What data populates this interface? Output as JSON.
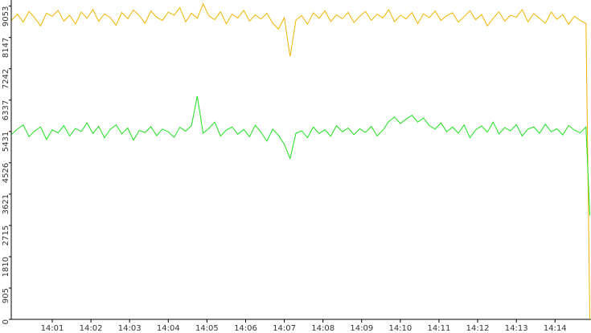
{
  "chart_data": {
    "type": "line",
    "x": [
      839.95,
      840.1,
      840.25,
      840.4,
      840.55,
      840.7,
      840.85,
      841.0,
      841.15,
      841.3,
      841.45,
      841.6,
      841.75,
      841.9,
      842.05,
      842.2,
      842.35,
      842.5,
      842.65,
      842.8,
      842.95,
      843.1,
      843.25,
      843.4,
      843.55,
      843.7,
      843.85,
      844.0,
      844.15,
      844.3,
      844.45,
      844.6,
      844.75,
      844.9,
      845.05,
      845.2,
      845.35,
      845.5,
      845.65,
      845.8,
      845.95,
      846.1,
      846.25,
      846.4,
      846.55,
      846.7,
      846.85,
      847.0,
      847.15,
      847.3,
      847.45,
      847.6,
      847.75,
      847.9,
      848.05,
      848.2,
      848.35,
      848.5,
      848.65,
      848.8,
      848.95,
      849.1,
      849.25,
      849.4,
      849.55,
      849.7,
      849.85,
      850.0,
      850.15,
      850.3,
      850.45,
      850.6,
      850.75,
      850.9,
      851.05,
      851.2,
      851.35,
      851.5,
      851.65,
      851.8,
      851.95,
      852.1,
      852.25,
      852.4,
      852.55,
      852.7,
      852.85,
      853.0,
      853.15,
      853.3,
      853.45,
      853.6,
      853.75,
      853.9,
      854.05,
      854.2,
      854.35,
      854.5,
      854.65,
      854.8,
      854.9
    ],
    "series": [
      {
        "color": "#f0b400",
        "values": [
          8650,
          8820,
          8590,
          8900,
          8710,
          8480,
          8850,
          8760,
          8930,
          8620,
          8790,
          8540,
          8880,
          8700,
          8960,
          8610,
          8830,
          8720,
          8500,
          8870,
          8690,
          8940,
          8780,
          8560,
          8910,
          8730,
          8640,
          8880,
          8790,
          9010,
          8600,
          8850,
          8700,
          9120,
          8770,
          8660,
          8890,
          8540,
          8820,
          8710,
          8930,
          8620,
          8800,
          8680,
          8850,
          8560,
          8390,
          8720,
          7600,
          8650,
          8780,
          8530,
          8860,
          8700,
          8920,
          8610,
          8800,
          8690,
          8870,
          8580,
          8760,
          8900,
          8640,
          8820,
          8710,
          8950,
          8600,
          8790,
          8680,
          8870,
          8550,
          8830,
          8720,
          8910,
          8640,
          8780,
          8860,
          8590,
          8750,
          8920,
          8660,
          8810,
          8480,
          8700,
          8890,
          8620,
          8790,
          8730,
          8950,
          8600,
          8840,
          8700,
          8560,
          8880,
          8670,
          8810,
          8530,
          8760,
          8640,
          8550,
          0
        ]
      },
      {
        "color": "#1ee01e",
        "values": [
          5350,
          5500,
          5620,
          5280,
          5450,
          5560,
          5200,
          5480,
          5390,
          5600,
          5300,
          5520,
          5430,
          5680,
          5370,
          5580,
          5250,
          5490,
          5620,
          5360,
          5530,
          5180,
          5460,
          5400,
          5570,
          5310,
          5500,
          5420,
          5260,
          5550,
          5440,
          5600,
          6450,
          5380,
          5520,
          5700,
          5300,
          5470,
          5560,
          5350,
          5490,
          5280,
          5610,
          5400,
          5150,
          5500,
          5320,
          5060,
          4650,
          5380,
          5450,
          5250,
          5560,
          5370,
          5480,
          5290,
          5600,
          5420,
          5530,
          5340,
          5510,
          5400,
          5580,
          5300,
          5470,
          5720,
          5850,
          5660,
          5790,
          5900,
          5700,
          5820,
          5600,
          5500,
          5680,
          5420,
          5560,
          5380,
          5620,
          5250,
          5480,
          5590,
          5410,
          5700,
          5360,
          5540,
          5450,
          5630,
          5300,
          5500,
          5560,
          5380,
          5640,
          5420,
          5510,
          5330,
          5600,
          5470,
          5390,
          5560,
          3000
        ]
      }
    ],
    "xlim": [
      839.94,
      854.93
    ],
    "xticks": [
      {
        "value": 841,
        "label": "14:01"
      },
      {
        "value": 842,
        "label": "14:02"
      },
      {
        "value": 843,
        "label": "14:03"
      },
      {
        "value": 844,
        "label": "14:04"
      },
      {
        "value": 845,
        "label": "14:05"
      },
      {
        "value": 846,
        "label": "14:06"
      },
      {
        "value": 847,
        "label": "14:07"
      },
      {
        "value": 848,
        "label": "14:08"
      },
      {
        "value": 849,
        "label": "14:09"
      },
      {
        "value": 850,
        "label": "14:10"
      },
      {
        "value": 851,
        "label": "14:11"
      },
      {
        "value": 852,
        "label": "14:12"
      },
      {
        "value": 853,
        "label": "14:13"
      },
      {
        "value": 854,
        "label": "14:14"
      }
    ],
    "ylim": [
      0,
      9230
    ],
    "yticks": [
      0,
      905,
      1810,
      2715,
      3621,
      4526,
      5431,
      6337,
      7242,
      8147,
      9053
    ]
  }
}
